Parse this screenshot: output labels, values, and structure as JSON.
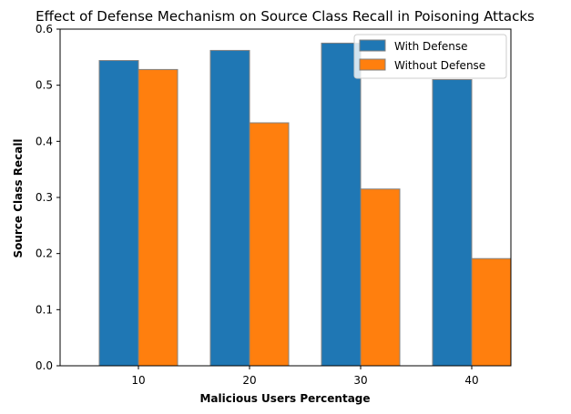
{
  "chart_data": {
    "type": "bar",
    "title": "Effect of Defense Mechanism on Source Class Recall in Poisoning Attacks",
    "xlabel": "Malicious Users Percentage",
    "ylabel": "Source Class Recall",
    "categories": [
      "10",
      "20",
      "30",
      "40"
    ],
    "series": [
      {
        "name": "With Defense",
        "values": [
          0.544,
          0.562,
          0.575,
          0.51
        ],
        "color": "#1f77b4"
      },
      {
        "name": "Without Defense",
        "values": [
          0.528,
          0.433,
          0.315,
          0.191
        ],
        "color": "#ff7f0e"
      }
    ],
    "ylim": [
      0,
      0.6
    ],
    "yticks": [
      "0.0",
      "0.1",
      "0.2",
      "0.3",
      "0.4",
      "0.5",
      "0.6"
    ],
    "legend_position": "top-right",
    "bar_edge_color": "#808080",
    "grid": false
  }
}
